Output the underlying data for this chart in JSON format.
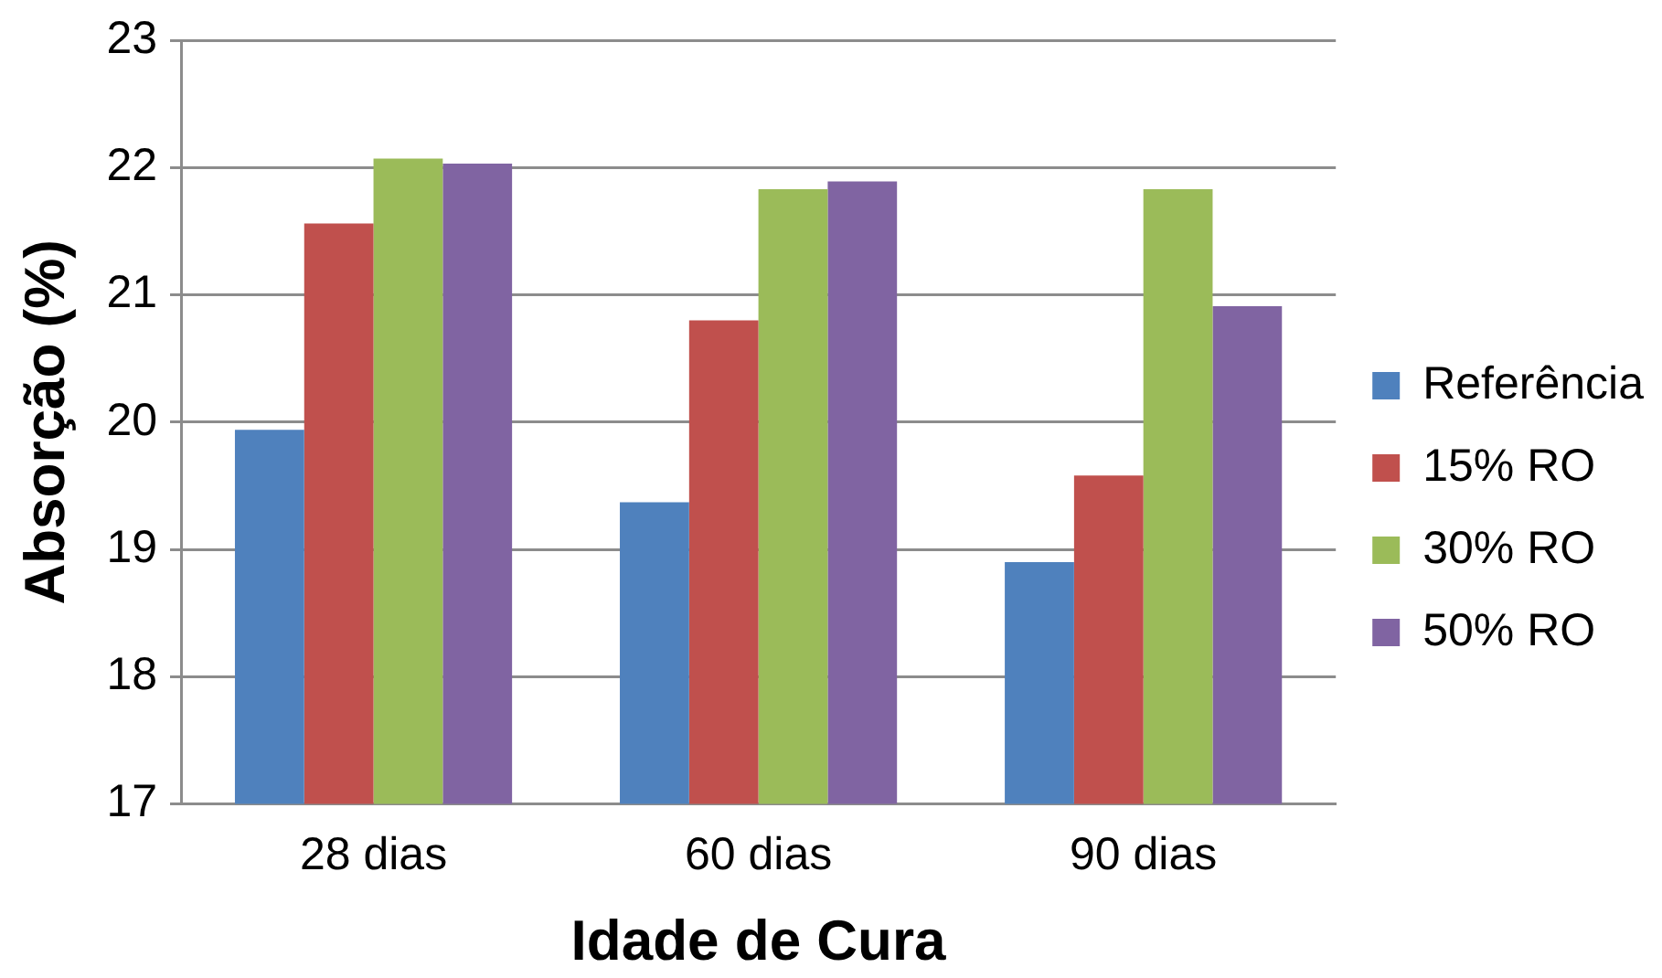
{
  "chart_data": {
    "type": "bar",
    "xlabel": "Idade de Cura",
    "ylabel": "Absorção (%)",
    "categories": [
      "28 dias",
      "60 dias",
      "90 dias"
    ],
    "series": [
      {
        "name": "Referência",
        "color": "#4f81bd",
        "values": [
          19.94,
          19.37,
          18.9
        ]
      },
      {
        "name": "15% RO",
        "color": "#c0504d",
        "values": [
          21.56,
          20.8,
          19.58
        ]
      },
      {
        "name": "30% RO",
        "color": "#9bbb59",
        "values": [
          22.07,
          21.83,
          21.83
        ]
      },
      {
        "name": "50% RO",
        "color": "#8064a2",
        "values": [
          22.03,
          21.89,
          20.91
        ]
      }
    ],
    "ylim": [
      17,
      23
    ],
    "yticks": [
      17,
      18,
      19,
      20,
      21,
      22,
      23
    ],
    "grid": "y",
    "legend": "right"
  }
}
